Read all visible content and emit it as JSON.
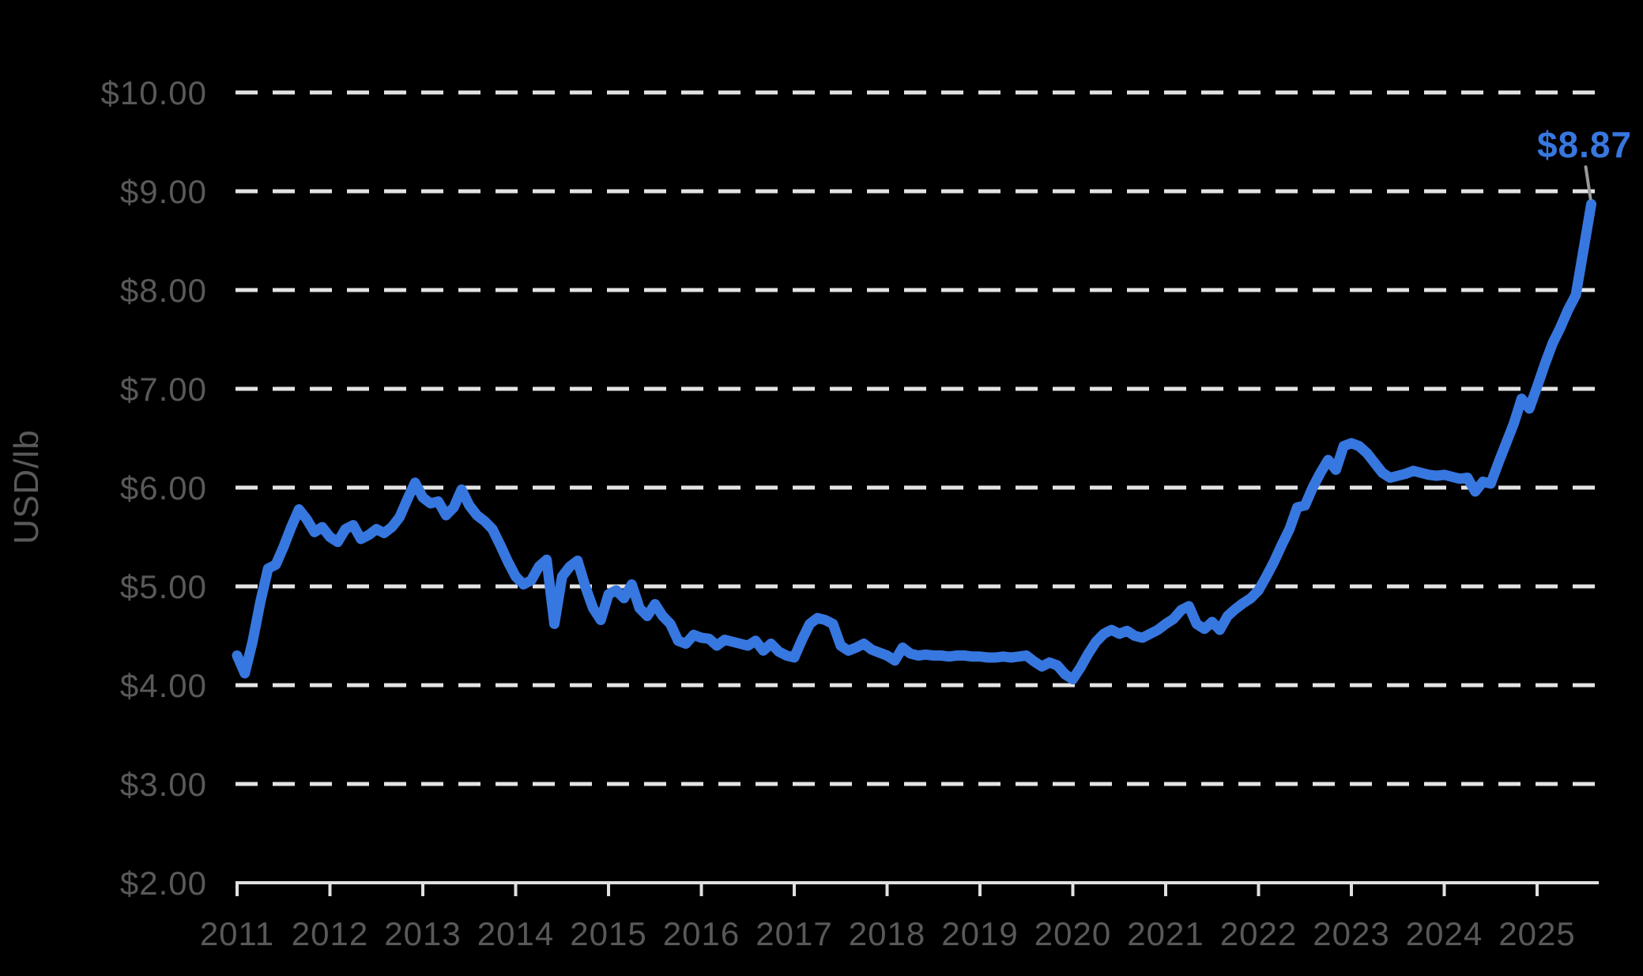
{
  "chart_data": {
    "type": "line",
    "ylabel": "USD/lb",
    "xlabel": "",
    "ylim": [
      2,
      10
    ],
    "grid": "horizontal-dashed",
    "legend": "none",
    "x_start_year": 2011,
    "points_per_year": 12,
    "x_tick_labels": [
      "2011",
      "2012",
      "2013",
      "2014",
      "2015",
      "2016",
      "2017",
      "2018",
      "2019",
      "2020",
      "2021",
      "2022",
      "2023",
      "2024",
      "2025"
    ],
    "y_ticks": [
      {
        "label": "$10.00",
        "value": 10
      },
      {
        "label": "$9.00",
        "value": 9
      },
      {
        "label": "$8.00",
        "value": 8
      },
      {
        "label": "$7.00",
        "value": 7
      },
      {
        "label": "$6.00",
        "value": 6
      },
      {
        "label": "$5.00",
        "value": 5
      },
      {
        "label": "$4.00",
        "value": 4
      },
      {
        "label": "$3.00",
        "value": 3
      },
      {
        "label": "$2.00",
        "value": 2
      }
    ],
    "series": [
      {
        "values": [
          4.3,
          4.12,
          4.44,
          4.84,
          5.18,
          5.22,
          5.4,
          5.6,
          5.78,
          5.68,
          5.55,
          5.6,
          5.5,
          5.45,
          5.58,
          5.62,
          5.48,
          5.52,
          5.58,
          5.54,
          5.6,
          5.7,
          5.88,
          6.05,
          5.9,
          5.84,
          5.86,
          5.72,
          5.8,
          5.98,
          5.82,
          5.72,
          5.66,
          5.58,
          5.42,
          5.25,
          5.1,
          5.02,
          5.06,
          5.2,
          5.27,
          4.62,
          5.1,
          5.2,
          5.26,
          5.0,
          4.78,
          4.66,
          4.92,
          4.96,
          4.88,
          5.02,
          4.78,
          4.7,
          4.82,
          4.7,
          4.62,
          4.45,
          4.42,
          4.51,
          4.48,
          4.47,
          4.4,
          4.46,
          4.44,
          4.42,
          4.4,
          4.45,
          4.35,
          4.42,
          4.34,
          4.3,
          4.28,
          4.46,
          4.62,
          4.68,
          4.66,
          4.62,
          4.4,
          4.35,
          4.38,
          4.42,
          4.36,
          4.33,
          4.3,
          4.25,
          4.38,
          4.32,
          4.3,
          4.31,
          4.3,
          4.3,
          4.29,
          4.3,
          4.3,
          4.29,
          4.29,
          4.28,
          4.28,
          4.29,
          4.28,
          4.29,
          4.3,
          4.24,
          4.19,
          4.23,
          4.2,
          4.11,
          4.06,
          4.18,
          4.32,
          4.44,
          4.52,
          4.56,
          4.52,
          4.55,
          4.5,
          4.48,
          4.52,
          4.56,
          4.62,
          4.67,
          4.76,
          4.8,
          4.62,
          4.57,
          4.64,
          4.56,
          4.7,
          4.77,
          4.83,
          4.88,
          4.96,
          5.1,
          5.25,
          5.42,
          5.58,
          5.8,
          5.82,
          6.0,
          6.15,
          6.28,
          6.18,
          6.42,
          6.45,
          6.42,
          6.35,
          6.25,
          6.15,
          6.1,
          6.12,
          6.14,
          6.17,
          6.15,
          6.13,
          6.12,
          6.13,
          6.11,
          6.09,
          6.1,
          5.96,
          6.06,
          6.04,
          6.25,
          6.45,
          6.65,
          6.9,
          6.8,
          7.02,
          7.25,
          7.46,
          7.62,
          7.8,
          7.95,
          8.41,
          8.87
        ]
      }
    ],
    "annotation": {
      "label": "$8.87",
      "value": 8.87
    },
    "colors": {
      "background": "#000000",
      "line": "#3777E0",
      "grid": "#e4e4e4",
      "axis": "#e0e0e0",
      "tick_label": "#59595b",
      "annotation": "#3777E0",
      "leader": "#9a9a9a"
    }
  }
}
